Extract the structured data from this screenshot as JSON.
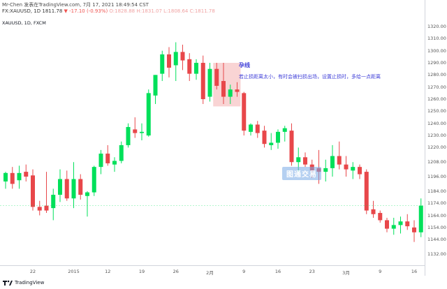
{
  "header": {
    "line1": "Mr-Chen 发表在TradingView.com, 7月 17, 2021 18:49:54 CST",
    "line2_prefix": "FX:XAUUSD, 1D 1811.78",
    "change": "▼ -17.10 (-0.93%)",
    "open": "O:1828.88",
    "high": "H:1831.07",
    "low": "L:1808.64",
    "close": "C:1811.78"
  },
  "symbol_label": "XAUUSD, 1D, FXCM",
  "annotation": {
    "title": "孕线",
    "body": "若止损距离太小，有时会被扫损出场，设置止损时，多给一点距离"
  },
  "watermark": "图通交易",
  "footer": {
    "brand": "TradingView"
  },
  "colors": {
    "up": "#00e05a",
    "down": "#e8474a",
    "highlight": "#f6c2c2",
    "annotation": "#3f3fd8"
  },
  "price_axis": {
    "ticks": [
      "1320.00",
      "1310.00",
      "1300.00",
      "1290.00",
      "1280.00",
      "1270.00",
      "1260.00",
      "1250.00",
      "1240.00",
      "1230.00",
      "1220.00",
      "1208.00",
      "1196.00",
      "1184.00",
      "1174.00",
      "1164.00",
      "1154.00",
      "1144.00",
      "1132.00"
    ]
  },
  "time_axis": {
    "ticks": [
      "22",
      "2015",
      "12",
      "19",
      "26",
      "2月",
      "9",
      "16",
      "23",
      "3月",
      "9",
      "16"
    ]
  },
  "chart_data": {
    "type": "candlestick",
    "ylim": [
      1132,
      1320
    ],
    "candles": [
      {
        "o": 1192,
        "h": 1200,
        "l": 1186,
        "c": 1199
      },
      {
        "o": 1199,
        "h": 1204,
        "l": 1186,
        "c": 1190
      },
      {
        "o": 1193,
        "h": 1205,
        "l": 1186,
        "c": 1199
      },
      {
        "o": 1200,
        "h": 1206,
        "l": 1192,
        "c": 1196
      },
      {
        "o": 1197,
        "h": 1202,
        "l": 1168,
        "c": 1171
      },
      {
        "o": 1171,
        "h": 1176,
        "l": 1164,
        "c": 1168
      },
      {
        "o": 1172,
        "h": 1200,
        "l": 1166,
        "c": 1168
      },
      {
        "o": 1170,
        "h": 1186,
        "l": 1160,
        "c": 1181
      },
      {
        "o": 1181,
        "h": 1202,
        "l": 1175,
        "c": 1194
      },
      {
        "o": 1194,
        "h": 1201,
        "l": 1176,
        "c": 1178
      },
      {
        "o": 1178,
        "h": 1208,
        "l": 1170,
        "c": 1194
      },
      {
        "o": 1194,
        "h": 1198,
        "l": 1177,
        "c": 1181
      },
      {
        "o": 1180,
        "h": 1184,
        "l": 1163,
        "c": 1183
      },
      {
        "o": 1183,
        "h": 1205,
        "l": 1180,
        "c": 1204
      },
      {
        "o": 1204,
        "h": 1218,
        "l": 1198,
        "c": 1215
      },
      {
        "o": 1215,
        "h": 1222,
        "l": 1205,
        "c": 1207
      },
      {
        "o": 1206,
        "h": 1212,
        "l": 1200,
        "c": 1209
      },
      {
        "o": 1209,
        "h": 1225,
        "l": 1207,
        "c": 1222
      },
      {
        "o": 1222,
        "h": 1240,
        "l": 1220,
        "c": 1237
      },
      {
        "o": 1235,
        "h": 1245,
        "l": 1228,
        "c": 1232
      },
      {
        "o": 1232,
        "h": 1240,
        "l": 1226,
        "c": 1233
      },
      {
        "o": 1230,
        "h": 1268,
        "l": 1229,
        "c": 1265
      },
      {
        "o": 1263,
        "h": 1280,
        "l": 1256,
        "c": 1280
      },
      {
        "o": 1281,
        "h": 1300,
        "l": 1275,
        "c": 1297
      },
      {
        "o": 1297,
        "h": 1303,
        "l": 1278,
        "c": 1286
      },
      {
        "o": 1288,
        "h": 1307,
        "l": 1275,
        "c": 1299
      },
      {
        "o": 1299,
        "h": 1305,
        "l": 1284,
        "c": 1292
      },
      {
        "o": 1293,
        "h": 1298,
        "l": 1275,
        "c": 1281
      },
      {
        "o": 1281,
        "h": 1293,
        "l": 1276,
        "c": 1290
      },
      {
        "o": 1290,
        "h": 1296,
        "l": 1256,
        "c": 1260
      },
      {
        "o": 1262,
        "h": 1290,
        "l": 1258,
        "c": 1285
      },
      {
        "o": 1285,
        "h": 1290,
        "l": 1268,
        "c": 1271
      },
      {
        "o": 1275,
        "h": 1290,
        "l": 1256,
        "c": 1262
      },
      {
        "o": 1262,
        "h": 1272,
        "l": 1256,
        "c": 1268
      },
      {
        "o": 1268,
        "h": 1274,
        "l": 1262,
        "c": 1266
      },
      {
        "o": 1265,
        "h": 1266,
        "l": 1230,
        "c": 1234
      },
      {
        "o": 1233,
        "h": 1240,
        "l": 1230,
        "c": 1239
      },
      {
        "o": 1239,
        "h": 1242,
        "l": 1228,
        "c": 1232
      },
      {
        "o": 1234,
        "h": 1238,
        "l": 1220,
        "c": 1223
      },
      {
        "o": 1222,
        "h": 1232,
        "l": 1218,
        "c": 1224
      },
      {
        "o": 1224,
        "h": 1235,
        "l": 1219,
        "c": 1233
      },
      {
        "o": 1233,
        "h": 1238,
        "l": 1225,
        "c": 1236
      },
      {
        "o": 1234,
        "h": 1240,
        "l": 1205,
        "c": 1208
      },
      {
        "o": 1208,
        "h": 1220,
        "l": 1200,
        "c": 1212
      },
      {
        "o": 1212,
        "h": 1216,
        "l": 1204,
        "c": 1206
      },
      {
        "o": 1206,
        "h": 1210,
        "l": 1195,
        "c": 1201
      },
      {
        "o": 1203,
        "h": 1218,
        "l": 1190,
        "c": 1200
      },
      {
        "o": 1200,
        "h": 1210,
        "l": 1192,
        "c": 1203
      },
      {
        "o": 1203,
        "h": 1222,
        "l": 1196,
        "c": 1213
      },
      {
        "o": 1213,
        "h": 1225,
        "l": 1202,
        "c": 1206
      },
      {
        "o": 1206,
        "h": 1213,
        "l": 1196,
        "c": 1202
      },
      {
        "o": 1201,
        "h": 1208,
        "l": 1194,
        "c": 1204
      },
      {
        "o": 1204,
        "h": 1206,
        "l": 1194,
        "c": 1198
      },
      {
        "o": 1200,
        "h": 1202,
        "l": 1165,
        "c": 1168
      },
      {
        "o": 1169,
        "h": 1176,
        "l": 1162,
        "c": 1165
      },
      {
        "o": 1166,
        "h": 1168,
        "l": 1158,
        "c": 1160
      },
      {
        "o": 1160,
        "h": 1162,
        "l": 1150,
        "c": 1153
      },
      {
        "o": 1153,
        "h": 1162,
        "l": 1148,
        "c": 1156
      },
      {
        "o": 1156,
        "h": 1163,
        "l": 1149,
        "c": 1159
      },
      {
        "o": 1159,
        "h": 1165,
        "l": 1152,
        "c": 1155
      },
      {
        "o": 1154,
        "h": 1160,
        "l": 1142,
        "c": 1150
      },
      {
        "o": 1150,
        "h": 1178,
        "l": 1146,
        "c": 1172
      }
    ],
    "highlight_range": {
      "from": 31,
      "to": 34,
      "price_top": 1290,
      "price_bottom": 1254
    }
  }
}
